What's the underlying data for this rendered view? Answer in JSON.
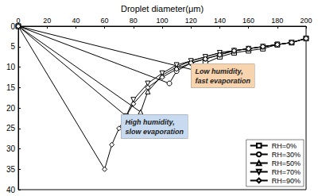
{
  "chart_data": {
    "type": "line",
    "xlabel": "Droplet diameter(μm)",
    "xlim": [
      0,
      200
    ],
    "xticks": [
      0,
      20,
      40,
      60,
      80,
      100,
      120,
      140,
      160,
      180,
      200
    ],
    "ylim": [
      0,
      40
    ],
    "yticks": [
      0,
      5,
      10,
      15,
      20,
      25,
      30,
      35,
      40
    ],
    "grid": false,
    "legend": "lower right",
    "series": [
      {
        "name": "RH=0%",
        "color": "#000000",
        "marker": "square",
        "line_style": "solid",
        "x": [
          0,
          125,
          130,
          140,
          150,
          160,
          170,
          180,
          190,
          200
        ],
        "values": [
          0,
          11,
          9,
          7.5,
          6.5,
          6,
          5.5,
          4.5,
          4,
          3
        ]
      },
      {
        "name": "RH=30%",
        "color": "#000000",
        "marker": "circle",
        "line_style": "solid",
        "x": [
          0,
          105,
          110,
          120,
          130,
          140,
          150,
          160,
          170,
          180,
          190,
          200
        ],
        "values": [
          0,
          14,
          11,
          9,
          8,
          7,
          6,
          5.5,
          5,
          4.5,
          4,
          3
        ]
      },
      {
        "name": "RH=50%",
        "color": "#000000",
        "marker": "triangle",
        "line_style": "solid",
        "x": [
          0,
          85,
          90,
          100,
          110,
          120,
          130,
          140,
          150,
          160,
          170,
          180,
          190,
          200
        ],
        "values": [
          0,
          21,
          16,
          12,
          10,
          8.5,
          7.5,
          6.5,
          6,
          5.5,
          5,
          4.5,
          4,
          3
        ]
      },
      {
        "name": "RH=70%",
        "color": "#000000",
        "marker": "triangle_down",
        "line_style": "solid",
        "x": [
          0,
          75,
          80,
          90,
          100,
          110,
          120,
          130,
          140,
          150,
          160,
          170,
          180,
          190,
          200
        ],
        "values": [
          0,
          22,
          18,
          14,
          11.5,
          9.5,
          8.5,
          7.5,
          6.5,
          6,
          5.5,
          5,
          4.5,
          4,
          3
        ]
      },
      {
        "name": "RH=90%",
        "color": "#000000",
        "marker": "diamond",
        "line_style": "solid",
        "x": [
          0,
          60,
          65,
          70,
          80,
          90,
          100,
          110,
          120,
          130,
          140,
          150,
          160,
          170,
          180,
          190,
          200
        ],
        "values": [
          0,
          35,
          29,
          25,
          19,
          15,
          12.5,
          10.5,
          9,
          8,
          7,
          6,
          5.5,
          5,
          4.5,
          4,
          3
        ]
      }
    ],
    "annotations": [
      {
        "text": "Low humidity,\nfast evaporation",
        "color": "#f8d4ae"
      },
      {
        "text": "High humidity,\nslow evaporation",
        "color": "#c7daef"
      }
    ]
  }
}
